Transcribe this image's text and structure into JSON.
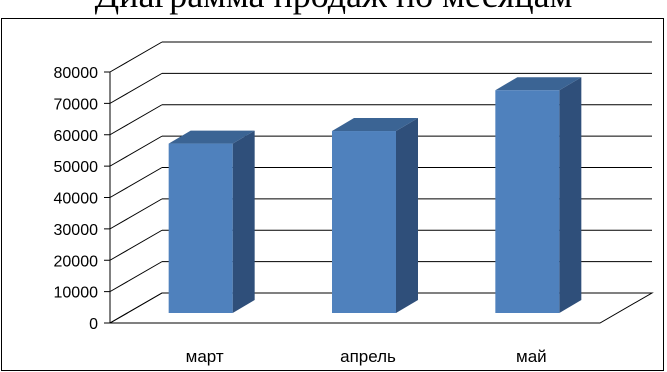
{
  "header_text": "Диаграмма продаж по месяцам",
  "chart_data": {
    "type": "bar",
    "title": "",
    "xlabel": "",
    "ylabel": "",
    "categories": [
      "март",
      "апрель",
      "май"
    ],
    "values": [
      54000,
      58000,
      71000
    ],
    "ylim": [
      0,
      80000
    ],
    "yticks": [
      0,
      10000,
      20000,
      30000,
      40000,
      50000,
      60000,
      70000,
      80000
    ],
    "grid": true,
    "three_d": true,
    "colors": {
      "front": "#4f81bd",
      "side": "#2f4f7a",
      "top": "#3b6494"
    }
  }
}
